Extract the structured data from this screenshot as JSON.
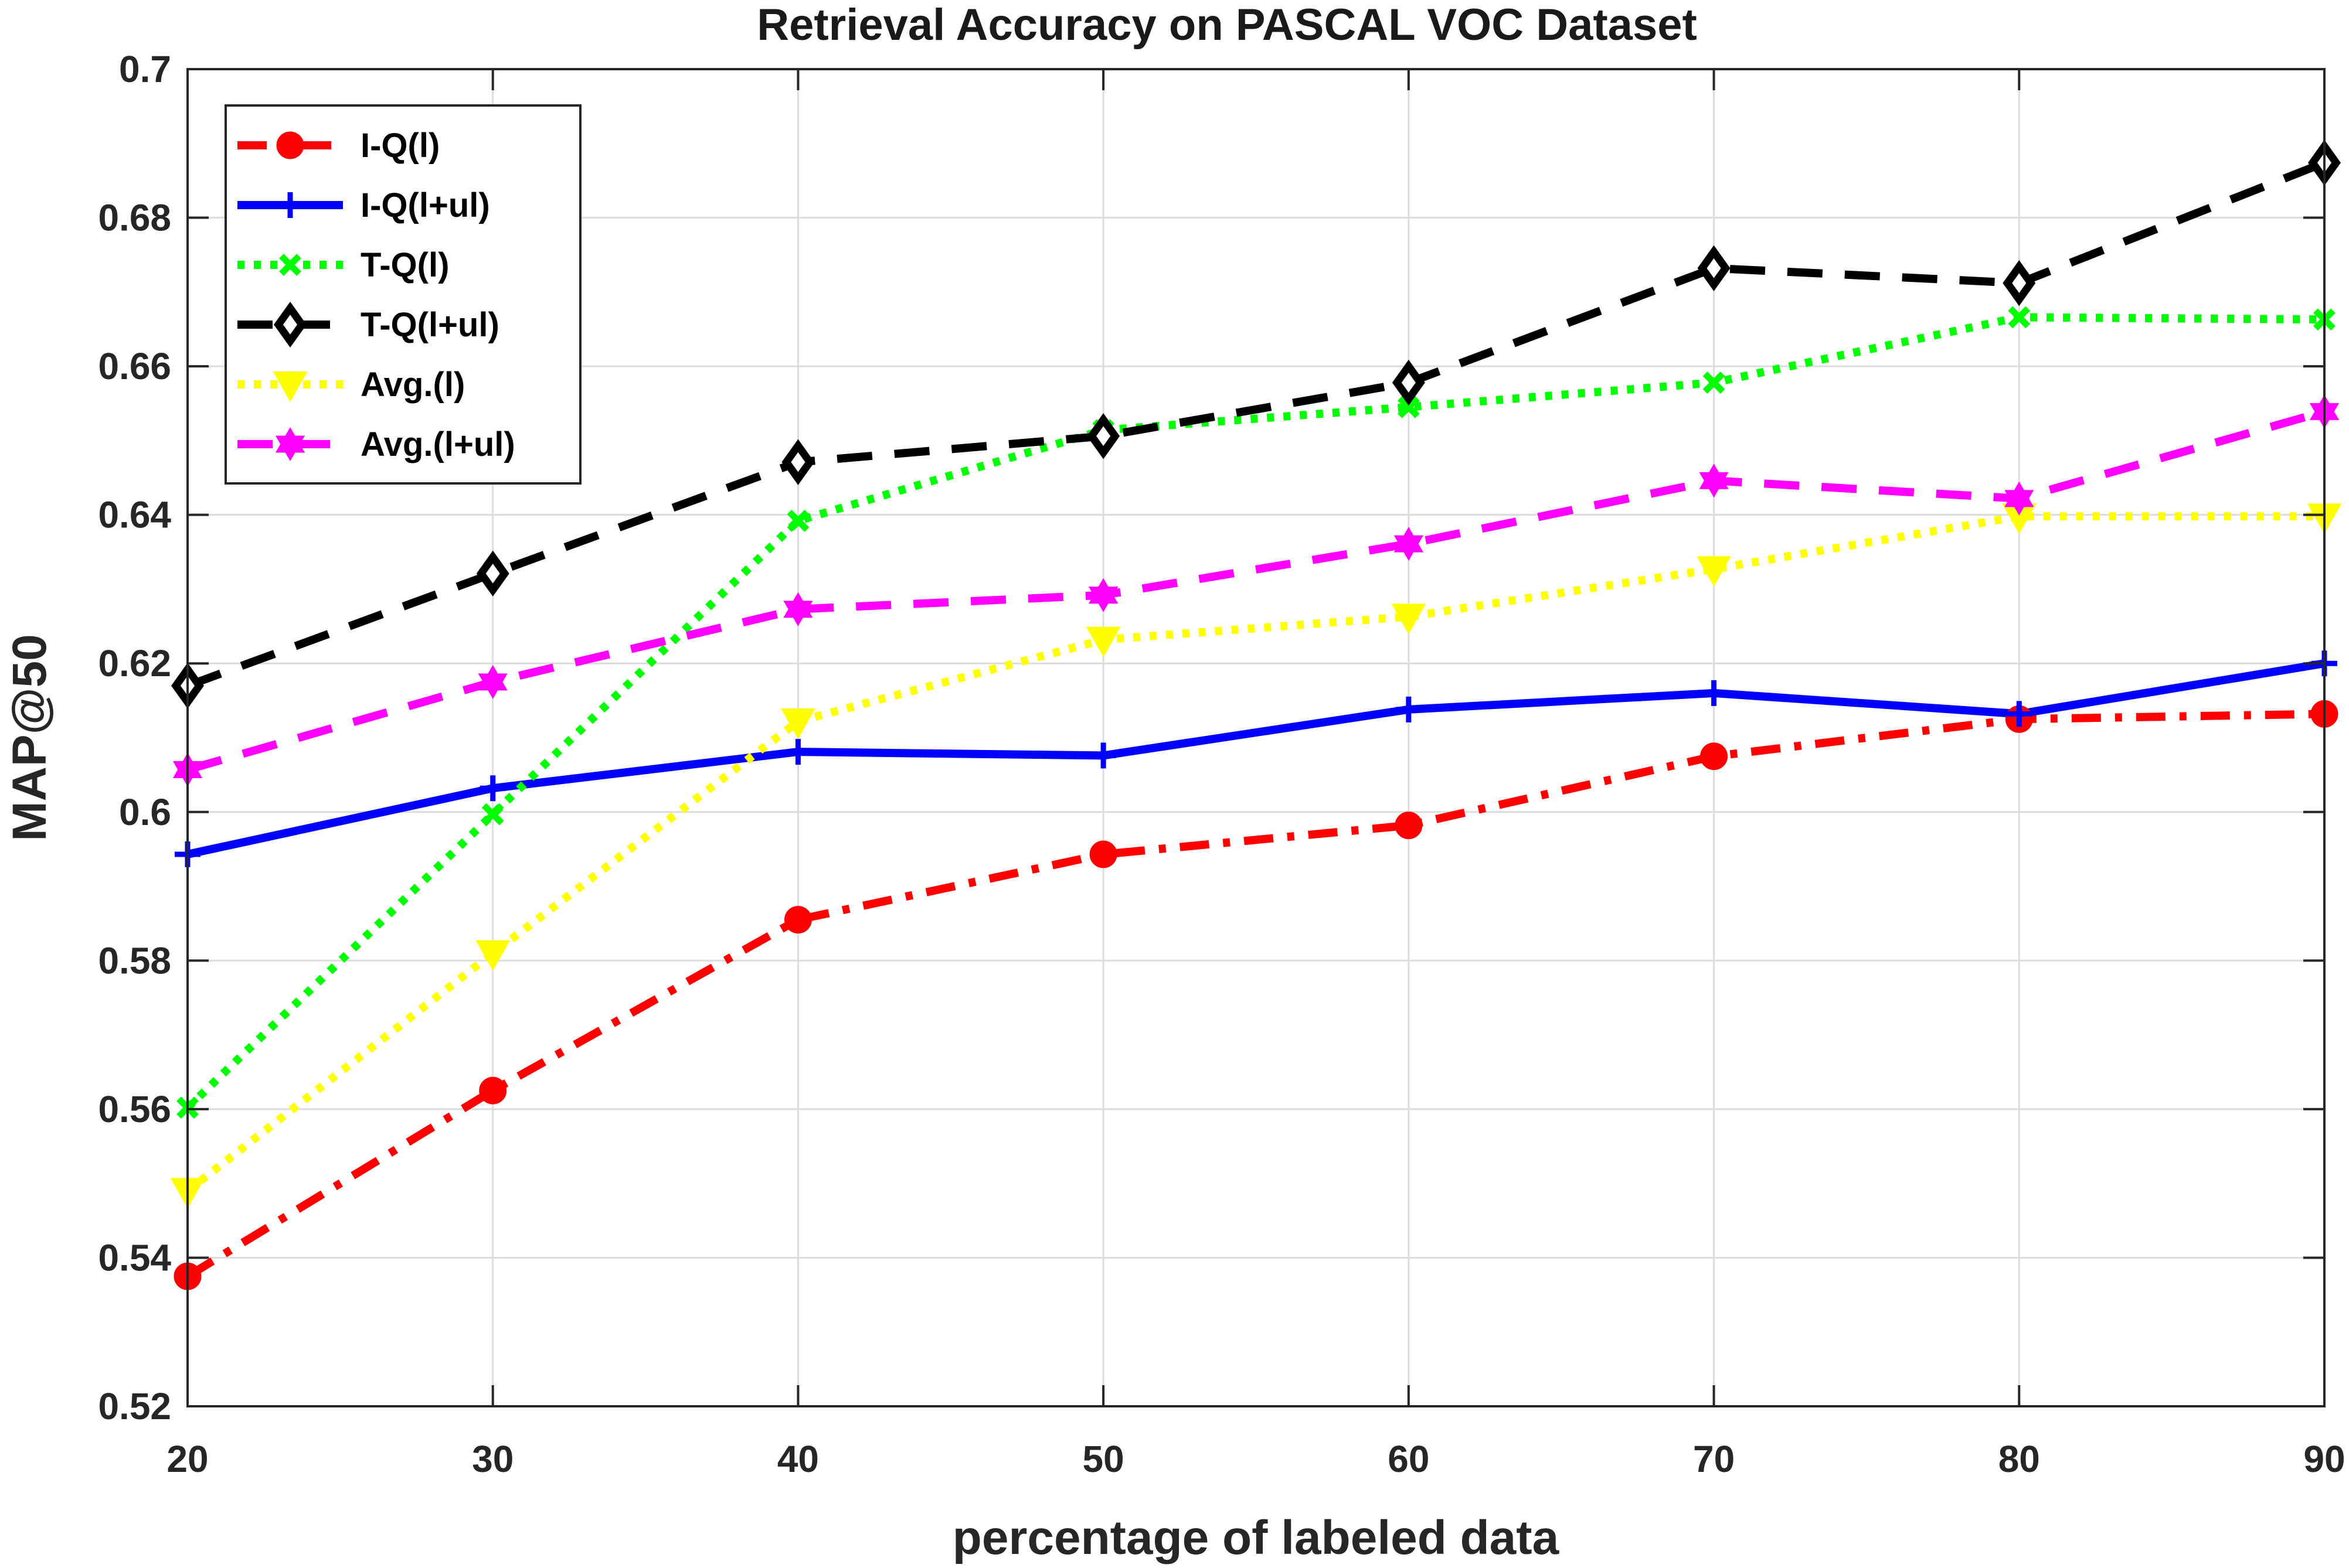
{
  "chart_data": {
    "type": "line",
    "title": "Retrieval Accuracy on PASCAL VOC Dataset",
    "xlabel": "percentage of labeled data",
    "ylabel": "MAP@50",
    "xlim": [
      20,
      90
    ],
    "ylim": [
      0.52,
      0.7
    ],
    "xticks": [
      20,
      30,
      40,
      50,
      60,
      70,
      80,
      90
    ],
    "xtick_labels": [
      "20",
      "30",
      "40",
      "50",
      "60",
      "70",
      "80",
      "90"
    ],
    "yticks": [
      0.52,
      0.54,
      0.56,
      0.58,
      0.6,
      0.62,
      0.64,
      0.66,
      0.68,
      0.7
    ],
    "ytick_labels": [
      "0.52",
      "0.54",
      "0.56",
      "0.58",
      "0.6",
      "0.62",
      "0.64",
      "0.66",
      "0.68",
      "0.7"
    ],
    "grid": true,
    "legend_position": "top-left",
    "x": [
      20,
      30,
      40,
      50,
      60,
      70,
      80,
      90
    ],
    "series": [
      {
        "name": "I-Q(l)",
        "color": "#ff0000",
        "style": "dash-dot",
        "marker": "circle",
        "values": [
          0.5375,
          0.5625,
          0.5855,
          0.5943,
          0.5982,
          0.6075,
          0.6125,
          0.6132
        ]
      },
      {
        "name": "I-Q(l+ul)",
        "color": "#0000ff",
        "style": "solid",
        "marker": "plus",
        "values": [
          0.5943,
          0.6032,
          0.6081,
          0.6076,
          0.6138,
          0.616,
          0.6132,
          0.62
        ]
      },
      {
        "name": "T-Q(l)",
        "color": "#00ff00",
        "style": "dotted",
        "marker": "x",
        "values": [
          0.5602,
          0.5997,
          0.6392,
          0.6514,
          0.6545,
          0.6578,
          0.6666,
          0.6663
        ]
      },
      {
        "name": "T-Q(l+ul)",
        "color": "#000000",
        "style": "dashed",
        "marker": "diamond",
        "values": [
          0.617,
          0.6321,
          0.6471,
          0.6506,
          0.6578,
          0.6732,
          0.6712,
          0.6874
        ]
      },
      {
        "name": "Avg.(l)",
        "color": "#ffff00",
        "style": "dotted",
        "marker": "triangle-down",
        "values": [
          0.549,
          0.581,
          0.6122,
          0.6232,
          0.6263,
          0.6327,
          0.6398,
          0.6398
        ]
      },
      {
        "name": "Avg.(l+ul)",
        "color": "#ff00ff",
        "style": "dashed",
        "marker": "hexagram",
        "values": [
          0.6057,
          0.6175,
          0.6273,
          0.6292,
          0.6361,
          0.6446,
          0.6422,
          0.6539
        ]
      }
    ]
  }
}
